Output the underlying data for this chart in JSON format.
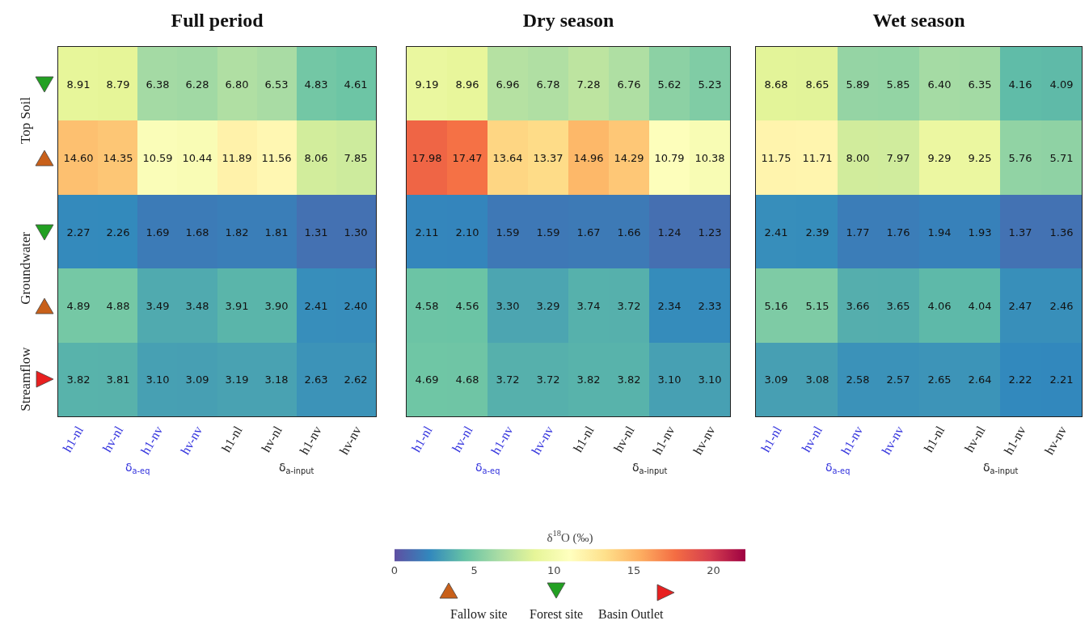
{
  "chart_data": [
    {
      "type": "heatmap",
      "title": "Full period",
      "categories": [
        "h1-nl",
        "hv-nl",
        "h1-nv",
        "hv-nv",
        "h1-nl",
        "hv-nl",
        "h1-nv",
        "hv-nv"
      ],
      "y_categories": [
        null,
        null,
        null,
        null,
        null
      ],
      "cells": [
        [
          8.91,
          8.79,
          6.38,
          6.28,
          6.8,
          6.53,
          4.83,
          4.61
        ],
        [
          14.6,
          14.35,
          10.59,
          10.44,
          11.89,
          11.56,
          8.06,
          7.85
        ],
        [
          2.27,
          2.26,
          1.69,
          1.68,
          1.82,
          1.81,
          1.31,
          1.3
        ],
        [
          4.89,
          4.88,
          3.49,
          3.48,
          3.91,
          3.9,
          2.41,
          2.4
        ],
        [
          3.82,
          3.81,
          3.1,
          3.09,
          3.19,
          3.18,
          2.63,
          2.62
        ]
      ],
      "cell_labels": [
        [
          "8.91",
          "8.79",
          "6.38",
          "6.28",
          "6.80",
          "6.53",
          "4.83",
          "4.61"
        ],
        [
          "14.60",
          "14.35",
          "10.59",
          "10.44",
          "11.89",
          "11.56",
          "8.06",
          "7.85"
        ],
        [
          "2.27",
          "2.26",
          "1.69",
          "1.68",
          "1.82",
          "1.81",
          "1.31",
          "1.30"
        ],
        [
          "4.89",
          "4.88",
          "3.49",
          "3.48",
          "3.91",
          "3.90",
          "2.41",
          "2.40"
        ],
        [
          "3.82",
          "3.81",
          "3.10",
          "3.09",
          "3.19",
          "3.18",
          "2.63",
          "2.62"
        ]
      ],
      "tick_labels": "x",
      "annotations": [
        "δ$_{a-eq}$",
        "δ$_{a-input}$",
        "Top Soil",
        "Groundwater",
        "Streamflow"
      ]
    },
    {
      "type": "heatmap",
      "title": "Dry season",
      "categories": [
        "h1-nl",
        "hv-nl",
        "h1-nv",
        "hv-nv",
        "h1-nl",
        "hv-nl",
        "h1-nv",
        "hv-nv"
      ],
      "y_categories": [
        null,
        null,
        null,
        null,
        null
      ],
      "cells": [
        [
          9.19,
          8.96,
          6.96,
          6.78,
          7.28,
          6.76,
          5.62,
          5.23
        ],
        [
          17.98,
          17.47,
          13.64,
          13.37,
          14.96,
          14.29,
          10.79,
          10.38
        ],
        [
          2.11,
          2.1,
          1.59,
          1.59,
          1.67,
          1.66,
          1.24,
          1.23
        ],
        [
          4.58,
          4.56,
          3.3,
          3.29,
          3.74,
          3.72,
          2.34,
          2.33
        ],
        [
          4.69,
          4.68,
          3.72,
          3.72,
          3.82,
          3.82,
          3.1,
          3.1
        ]
      ],
      "cell_labels": [
        [
          "9.19",
          "8.96",
          "6.96",
          "6.78",
          "7.28",
          "6.76",
          "5.62",
          "5.23"
        ],
        [
          "17.98",
          "17.47",
          "13.64",
          "13.37",
          "14.96",
          "14.29",
          "10.79",
          "10.38"
        ],
        [
          "2.11",
          "2.10",
          "1.59",
          "1.59",
          "1.67",
          "1.66",
          "1.24",
          "1.23"
        ],
        [
          "4.58",
          "4.56",
          "3.30",
          "3.29",
          "3.74",
          "3.72",
          "2.34",
          "2.33"
        ],
        [
          "4.69",
          "4.68",
          "3.72",
          "3.72",
          "3.82",
          "3.82",
          "3.10",
          "3.10"
        ]
      ],
      "clim": [
        0,
        22
      ],
      "cticks": [
        0,
        5,
        10,
        15,
        20
      ],
      "clabel": "δ$^{18}$O (‰)",
      "tick_labels": "x",
      "annotations": [
        "δ$_{a-eq}$",
        "δ$_{a-input}$",
        "Fallow site",
        "Forest site",
        "Basin Outlet"
      ]
    },
    {
      "type": "heatmap",
      "title": "Wet season",
      "categories": [
        "h1-nl",
        "hv-nl",
        "h1-nv",
        "hv-nv",
        "h1-nl",
        "hv-nl",
        "h1-nv",
        "hv-nv"
      ],
      "y_categories": [
        null,
        null,
        null,
        null,
        null
      ],
      "cells": [
        [
          8.68,
          8.65,
          5.89,
          5.85,
          6.4,
          6.35,
          4.16,
          4.09
        ],
        [
          11.75,
          11.71,
          8.0,
          7.97,
          9.29,
          9.25,
          5.76,
          5.71
        ],
        [
          2.41,
          2.39,
          1.77,
          1.76,
          1.94,
          1.93,
          1.37,
          1.36
        ],
        [
          5.16,
          5.15,
          3.66,
          3.65,
          4.06,
          4.04,
          2.47,
          2.46
        ],
        [
          3.09,
          3.08,
          2.58,
          2.57,
          2.65,
          2.64,
          2.22,
          2.21
        ]
      ],
      "cell_labels": [
        [
          "8.68",
          "8.65",
          "5.89",
          "5.85",
          "6.40",
          "6.35",
          "4.16",
          "4.09"
        ],
        [
          "11.75",
          "11.71",
          "8.00",
          "7.97",
          "9.29",
          "9.25",
          "5.76",
          "5.71"
        ],
        [
          "2.41",
          "2.39",
          "1.77",
          "1.76",
          "1.94",
          "1.93",
          "1.37",
          "1.36"
        ],
        [
          "5.16",
          "5.15",
          "3.66",
          "3.65",
          "4.06",
          "4.04",
          "2.47",
          "2.46"
        ],
        [
          "3.09",
          "3.08",
          "2.58",
          "2.57",
          "2.65",
          "2.64",
          "2.22",
          "2.21"
        ]
      ],
      "tick_labels": "x",
      "annotations": [
        "δ$_{a-eq}$",
        "δ$_{a-input}$"
      ]
    }
  ]
}
